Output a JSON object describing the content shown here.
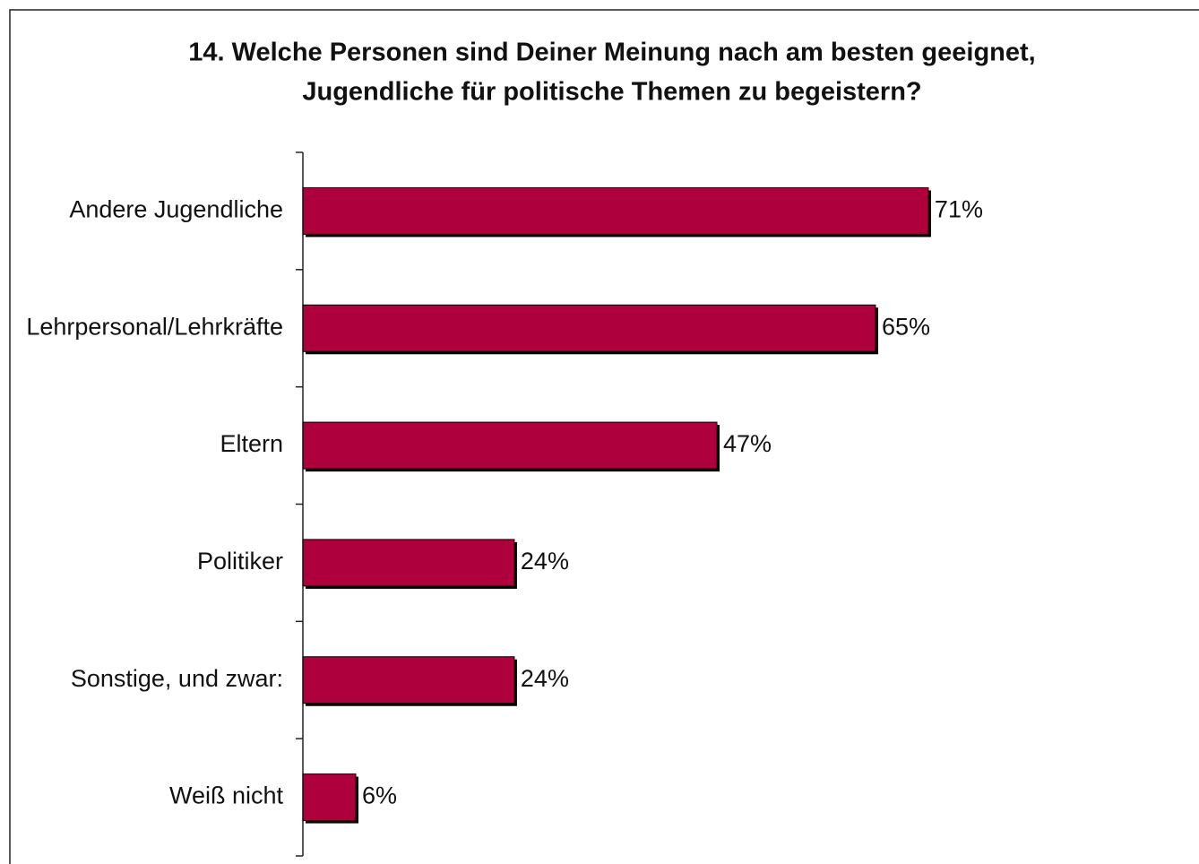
{
  "chart_data": {
    "type": "bar",
    "orientation": "horizontal",
    "title": [
      "14. Welche Personen sind Deiner Meinung nach am besten geeignet,",
      "Jugendliche für politische Themen zu begeistern?"
    ],
    "categories": [
      "Andere Jugendliche",
      "Lehrpersonal/Lehrkräfte",
      "Eltern",
      "Politiker",
      "Sonstige, und zwar:",
      "Weiß nicht"
    ],
    "values": [
      71,
      65,
      47,
      24,
      24,
      6
    ],
    "value_labels": [
      "71%",
      "65%",
      "47%",
      "24%",
      "24%",
      "6%"
    ],
    "color": "#ad003c"
  }
}
